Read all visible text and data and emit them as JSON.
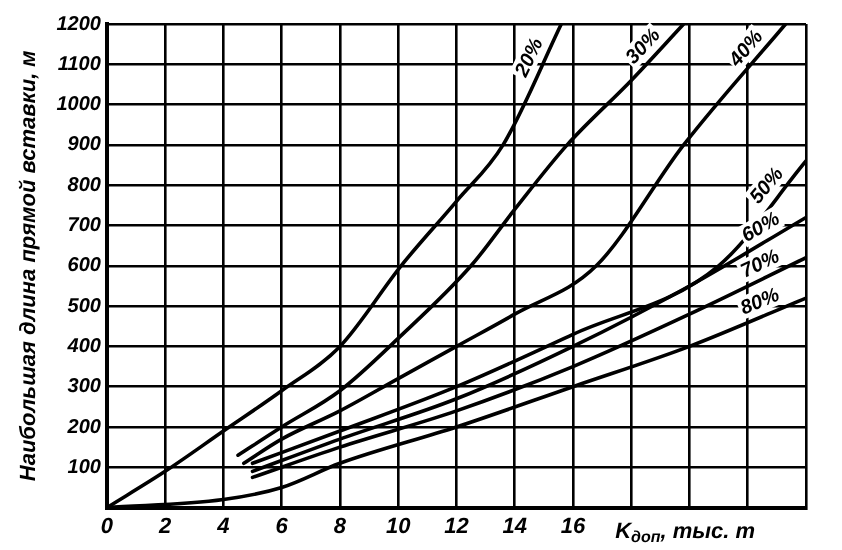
{
  "chart_data": {
    "type": "line",
    "xlabel": "K$_{доп}$, тыс. т",
    "ylabel": "Наибольшая длина прямой вставки, м",
    "xlim": [
      0,
      24
    ],
    "xticks": [
      0,
      2,
      4,
      6,
      8,
      10,
      12,
      14,
      16,
      {
        "value": 18,
        "label": null
      },
      {
        "value": 20,
        "label": null
      },
      {
        "value": 22,
        "label": null
      },
      {
        "value": 24,
        "label": null
      }
    ],
    "ylim": [
      0,
      1200
    ],
    "yticks": [
      {
        "value": 0,
        "label": null
      },
      100,
      200,
      300,
      400,
      500,
      600,
      700,
      800,
      900,
      1000,
      1100,
      1200
    ],
    "grid": true,
    "legend": false,
    "marker": "none",
    "line_style": "solid",
    "series": [
      {
        "name": "20%",
        "color": "#000000",
        "x": [
          0,
          2,
          4,
          6,
          8,
          10.1,
          12,
          13.6,
          15.6
        ],
        "values": [
          0,
          90,
          190,
          290,
          400,
          600,
          760,
          900,
          1200
        ]
      },
      {
        "name": "30%",
        "color": "#000000",
        "x": [
          4.5,
          6,
          8,
          10,
          12.5,
          14,
          15.8,
          18,
          19.8
        ],
        "values": [
          130,
          200,
          290,
          420,
          600,
          740,
          900,
          1060,
          1200
        ]
      },
      {
        "name": "40%",
        "color": "#000000",
        "x": [
          4.7,
          6,
          8,
          10,
          12,
          14,
          16.8,
          19.8,
          23.3
        ],
        "values": [
          110,
          170,
          240,
          320,
          400,
          480,
          600,
          900,
          1200
        ]
      },
      {
        "name": "50%",
        "color": "#000000",
        "x": [
          5,
          8,
          12,
          16,
          21,
          24
        ],
        "values": [
          110,
          190,
          300,
          430,
          600,
          860
        ]
      },
      {
        "name": "60%",
        "color": "#000000",
        "x": [
          5,
          8,
          12,
          16,
          20,
          24
        ],
        "values": [
          90,
          170,
          270,
          400,
          550,
          720
        ]
      },
      {
        "name": "70%",
        "color": "#000000",
        "x": [
          5,
          8,
          12,
          16,
          20,
          24
        ],
        "values": [
          75,
          150,
          240,
          350,
          480,
          620
        ]
      },
      {
        "name": "80%",
        "color": "#000000",
        "x": [
          0,
          4,
          6,
          8,
          12,
          16,
          20,
          24
        ],
        "values": [
          0,
          20,
          50,
          110,
          200,
          300,
          400,
          520
        ]
      }
    ]
  }
}
